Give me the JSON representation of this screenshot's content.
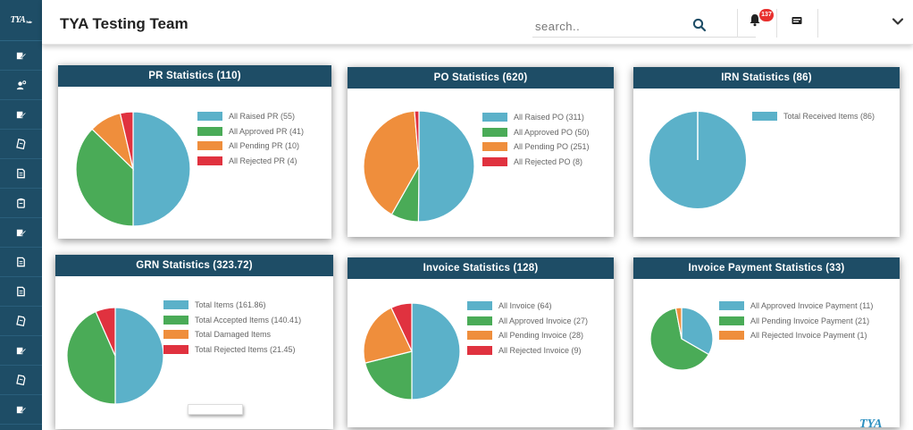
{
  "header": {
    "title": "TYA Testing Team",
    "search_placeholder": "search..",
    "notification_count": "137",
    "icons": [
      "search-icon",
      "bell-icon",
      "user-card-icon",
      "chevron-down-icon"
    ]
  },
  "sidebar": {
    "logo": "TYA",
    "logo_sub": "Suite",
    "icons": [
      "edit-icon",
      "user-settings-icon",
      "edit-icon",
      "document-icon",
      "file-icon",
      "clipboard-icon",
      "edit-icon",
      "file-icon",
      "file-icon",
      "document-icon",
      "edit-icon",
      "document-icon",
      "edit-icon"
    ]
  },
  "colors": {
    "accent": "#1e4d66",
    "blue": "#5bb1c9",
    "green": "#4aab57",
    "orange": "#ef8e3c",
    "red": "#e0323f",
    "badge": "#e8302e"
  },
  "cards": [
    {
      "id": "pr",
      "title": "PR Statistics (110)",
      "chart_data": {
        "type": "pie",
        "categories": [
          "All Raised PR",
          "All Approved PR",
          "All Pending PR",
          "All Rejected PR"
        ],
        "values": [
          55,
          41,
          10,
          4
        ],
        "legend": [
          "All Raised PR (55)",
          "All Approved PR (41)",
          "All Pending PR (10)",
          "All Rejected PR (4)"
        ],
        "colors": [
          "#5bb1c9",
          "#4aab57",
          "#ef8e3c",
          "#e0323f"
        ],
        "legend_position": "right"
      }
    },
    {
      "id": "po",
      "title": "PO Statistics (620)",
      "chart_data": {
        "type": "pie",
        "categories": [
          "All Raised PO",
          "All Approved PO",
          "All Pending PO",
          "All Rejected PO"
        ],
        "values": [
          311,
          50,
          251,
          8
        ],
        "legend": [
          "All Raised PO (311)",
          "All Approved PO (50)",
          "All Pending PO (251)",
          "All Rejected PO (8)"
        ],
        "colors": [
          "#5bb1c9",
          "#4aab57",
          "#ef8e3c",
          "#e0323f"
        ],
        "legend_position": "right"
      }
    },
    {
      "id": "irn",
      "title": "IRN Statistics (86)",
      "chart_data": {
        "type": "pie",
        "categories": [
          "Total Received Items"
        ],
        "values": [
          86
        ],
        "legend": [
          "Total Received Items (86)"
        ],
        "colors": [
          "#5bb1c9"
        ],
        "legend_position": "right"
      }
    },
    {
      "id": "grn",
      "title": "GRN Statistics (323.72)",
      "chart_data": {
        "type": "pie",
        "categories": [
          "Total Items",
          "Total Accepted Items",
          "Total Damaged Items",
          "Total Rejected Items"
        ],
        "values": [
          161.86,
          140.41,
          0,
          21.45
        ],
        "legend": [
          "Total Items (161.86)",
          "Total Accepted Items (140.41)",
          "Total Damaged Items",
          "Total Rejected Items (21.45)"
        ],
        "colors": [
          "#5bb1c9",
          "#4aab57",
          "#ef8e3c",
          "#e0323f"
        ],
        "legend_position": "right"
      }
    },
    {
      "id": "invoice",
      "title": "Invoice Statistics (128)",
      "chart_data": {
        "type": "pie",
        "categories": [
          "All Invoice",
          "All Approved Invoice",
          "All Pending Invoice",
          "All Rejected Invoice"
        ],
        "values": [
          64,
          27,
          28,
          9
        ],
        "legend": [
          "All Invoice (64)",
          "All Approved Invoice (27)",
          "All Pending Invoice (28)",
          "All Rejected Invoice (9)"
        ],
        "colors": [
          "#5bb1c9",
          "#4aab57",
          "#ef8e3c",
          "#e0323f"
        ],
        "legend_position": "right"
      }
    },
    {
      "id": "invoice-payment",
      "title": "Invoice Payment Statistics (33)",
      "chart_data": {
        "type": "pie",
        "categories": [
          "All Approved Invoice Payment",
          "All Pending Invoice Payment",
          "All Rejected Invoice Payment"
        ],
        "values": [
          11,
          21,
          1
        ],
        "legend": [
          "All Approved Invoice Payment (11)",
          "All Pending Invoice Payment (21)",
          "All Rejected Invoice Payment (1)"
        ],
        "colors": [
          "#5bb1c9",
          "#4aab57",
          "#ef8e3c"
        ],
        "legend_position": "right"
      }
    }
  ],
  "watermark": "TYA"
}
